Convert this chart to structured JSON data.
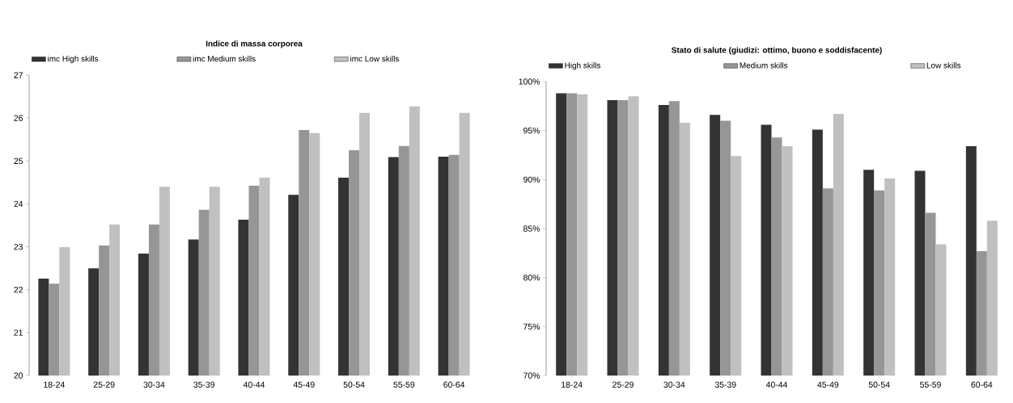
{
  "chart_data": [
    {
      "type": "bar",
      "title": "Indice di massa corporea",
      "categories": [
        "18-24",
        "25-29",
        "30-34",
        "35-39",
        "40-44",
        "45-49",
        "50-54",
        "55-59",
        "60-64"
      ],
      "series": [
        {
          "name": "imc High skills",
          "color": "#333333",
          "values": [
            22.26,
            22.5,
            22.84,
            23.17,
            23.63,
            24.21,
            24.61,
            25.09,
            25.1
          ]
        },
        {
          "name": "imc Medium skills",
          "color": "#969696",
          "values": [
            22.14,
            23.03,
            23.52,
            23.86,
            24.42,
            25.72,
            25.25,
            25.35,
            25.14
          ]
        },
        {
          "name": "imc Low skills",
          "color": "#c0c0c0",
          "values": [
            22.99,
            23.52,
            24.4,
            24.4,
            24.61,
            25.65,
            26.12,
            26.27,
            26.12
          ]
        }
      ],
      "ylim": [
        20,
        27
      ],
      "yticks": [
        20,
        21,
        22,
        23,
        24,
        25,
        26,
        27
      ],
      "legend": "top"
    },
    {
      "type": "bar",
      "title": "Stato di salute (giudizi: ottimo, buono e soddisfacente)",
      "categories": [
        "18-24",
        "25-29",
        "30-34",
        "35-39",
        "40-44",
        "45-49",
        "50-54",
        "55-59",
        "60-64"
      ],
      "series": [
        {
          "name": "High skills",
          "color": "#333333",
          "values": [
            98.8,
            98.1,
            97.6,
            96.6,
            95.6,
            95.1,
            91.0,
            90.9,
            93.4
          ]
        },
        {
          "name": "Medium skills",
          "color": "#969696",
          "values": [
            98.8,
            98.1,
            98.0,
            96.0,
            94.3,
            89.1,
            88.9,
            86.6,
            82.7
          ]
        },
        {
          "name": "Low  skills",
          "color": "#c0c0c0",
          "values": [
            98.7,
            98.5,
            95.8,
            92.4,
            93.4,
            96.7,
            90.1,
            83.4,
            85.8
          ]
        }
      ],
      "ylim": [
        70,
        100
      ],
      "yticks": [
        {
          "value": 70,
          "label": "70%"
        },
        {
          "value": 75,
          "label": "75%"
        },
        {
          "value": 80,
          "label": "80%"
        },
        {
          "value": 85,
          "label": "85%"
        },
        {
          "value": 90,
          "label": "90%"
        },
        {
          "value": 95,
          "label": "95%"
        },
        {
          "value": 100,
          "label": "100%"
        }
      ],
      "legend": "top"
    }
  ]
}
